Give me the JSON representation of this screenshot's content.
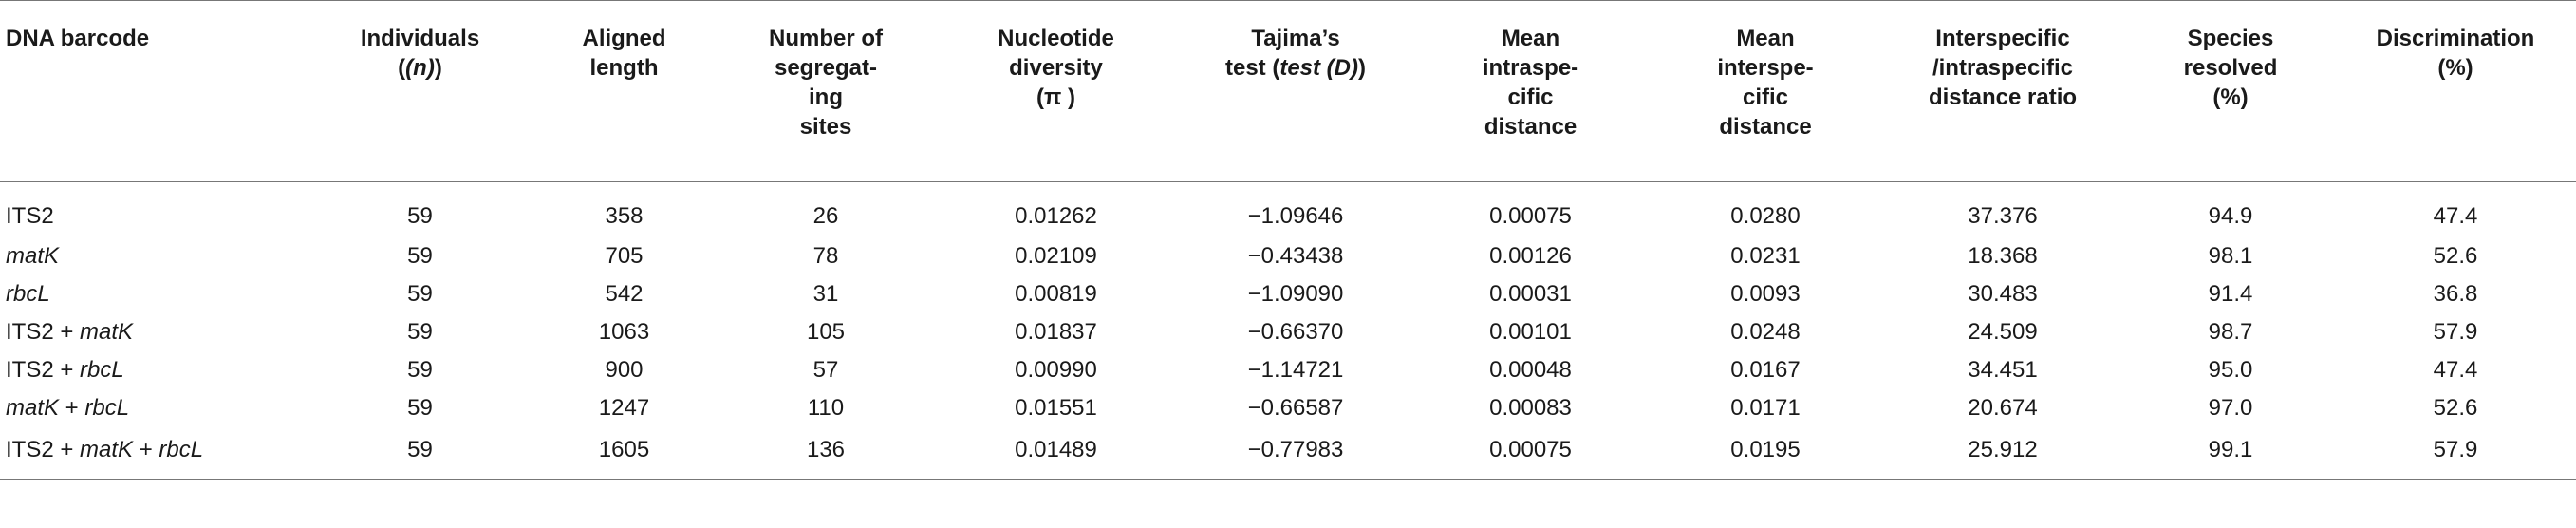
{
  "table": {
    "headers": [
      [
        "DNA barcode"
      ],
      [
        "Individuals",
        "(n)"
      ],
      [
        "Aligned",
        "length"
      ],
      [
        "Number of",
        "segregat-",
        "ing",
        "sites"
      ],
      [
        "Nucleotide",
        "diversity",
        "(π )"
      ],
      [
        "Tajima’s",
        "test (D)"
      ],
      [
        "Mean",
        "intraspe-",
        "cific",
        "distance"
      ],
      [
        "Mean",
        "interspe-",
        "cific",
        "distance"
      ],
      [
        "Interspecific",
        "/intraspecific",
        "distance ratio"
      ],
      [
        "Species",
        "resolved",
        "(%)"
      ],
      [
        "Discrimination",
        "(%)"
      ]
    ],
    "rows": [
      [
        "ITS2",
        "59",
        "358",
        "26",
        "0.01262",
        "−1.09646",
        "0.00075",
        "0.0280",
        "37.376",
        "94.9",
        "47.4"
      ],
      [
        "matK",
        "59",
        "705",
        "78",
        "0.02109",
        "−0.43438",
        "0.00126",
        "0.0231",
        "18.368",
        "98.1",
        "52.6"
      ],
      [
        "rbcL",
        "59",
        "542",
        "31",
        "0.00819",
        "−1.09090",
        "0.00031",
        "0.0093",
        "30.483",
        "91.4",
        "36.8"
      ],
      [
        "ITS2 + matK",
        "59",
        "1063",
        "105",
        "0.01837",
        "−0.66370",
        "0.00101",
        "0.0248",
        "24.509",
        "98.7",
        "57.9"
      ],
      [
        "ITS2 + rbcL",
        "59",
        "900",
        "57",
        "0.00990",
        "−1.14721",
        "0.00048",
        "0.0167",
        "34.451",
        "95.0",
        "47.4"
      ],
      [
        "matK + rbcL",
        "59",
        "1247",
        "110",
        "0.01551",
        "−0.66587",
        "0.00083",
        "0.0171",
        "20.674",
        "97.0",
        "52.6"
      ],
      [
        "ITS2 + matK + rbcL",
        "59",
        "1605",
        "136",
        "0.01489",
        "−0.77983",
        "0.00075",
        "0.0195",
        "25.912",
        "99.1",
        "57.9"
      ]
    ]
  }
}
